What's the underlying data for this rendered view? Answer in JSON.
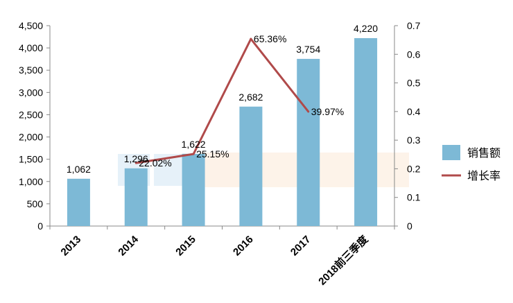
{
  "chart_data": {
    "type": "bar",
    "categories": [
      "2013",
      "2014",
      "2015",
      "2016",
      "2017",
      "2018前三季度"
    ],
    "series": [
      {
        "name": "销售额",
        "type": "bar",
        "axis": "left",
        "values": [
          1062,
          1296,
          1622,
          2682,
          3754,
          4220
        ],
        "labels": [
          "1,062",
          "1,296",
          "1,622",
          "2,682",
          "3,754",
          "4,220"
        ]
      },
      {
        "name": "增长率",
        "type": "line",
        "axis": "right",
        "values": [
          null,
          0.2202,
          0.2515,
          0.6536,
          0.3997,
          null
        ],
        "labels": [
          "",
          "22.02%",
          "25.15%",
          "65.36%",
          "39.97%",
          ""
        ]
      }
    ],
    "y_left": {
      "lim": [
        0,
        4500
      ],
      "ticks": [
        0,
        500,
        1000,
        1500,
        2000,
        2500,
        3000,
        3500,
        4000,
        4500
      ],
      "tick_labels": [
        "0",
        "500",
        "1,000",
        "1,500",
        "2,000",
        "2,500",
        "3,000",
        "3,500",
        "4,000",
        "4,500"
      ]
    },
    "y_right": {
      "lim": [
        0,
        0.7
      ],
      "ticks": [
        0,
        0.1,
        0.2,
        0.3,
        0.4,
        0.5,
        0.6,
        0.7
      ],
      "tick_labels": [
        "0",
        "0.1",
        "0.2",
        "0.3",
        "0.4",
        "0.5",
        "0.6",
        "0.7"
      ]
    },
    "grid": false,
    "legend_position": "right",
    "colors": {
      "bar": "#7db9d6",
      "line": "#b04a4a"
    }
  }
}
